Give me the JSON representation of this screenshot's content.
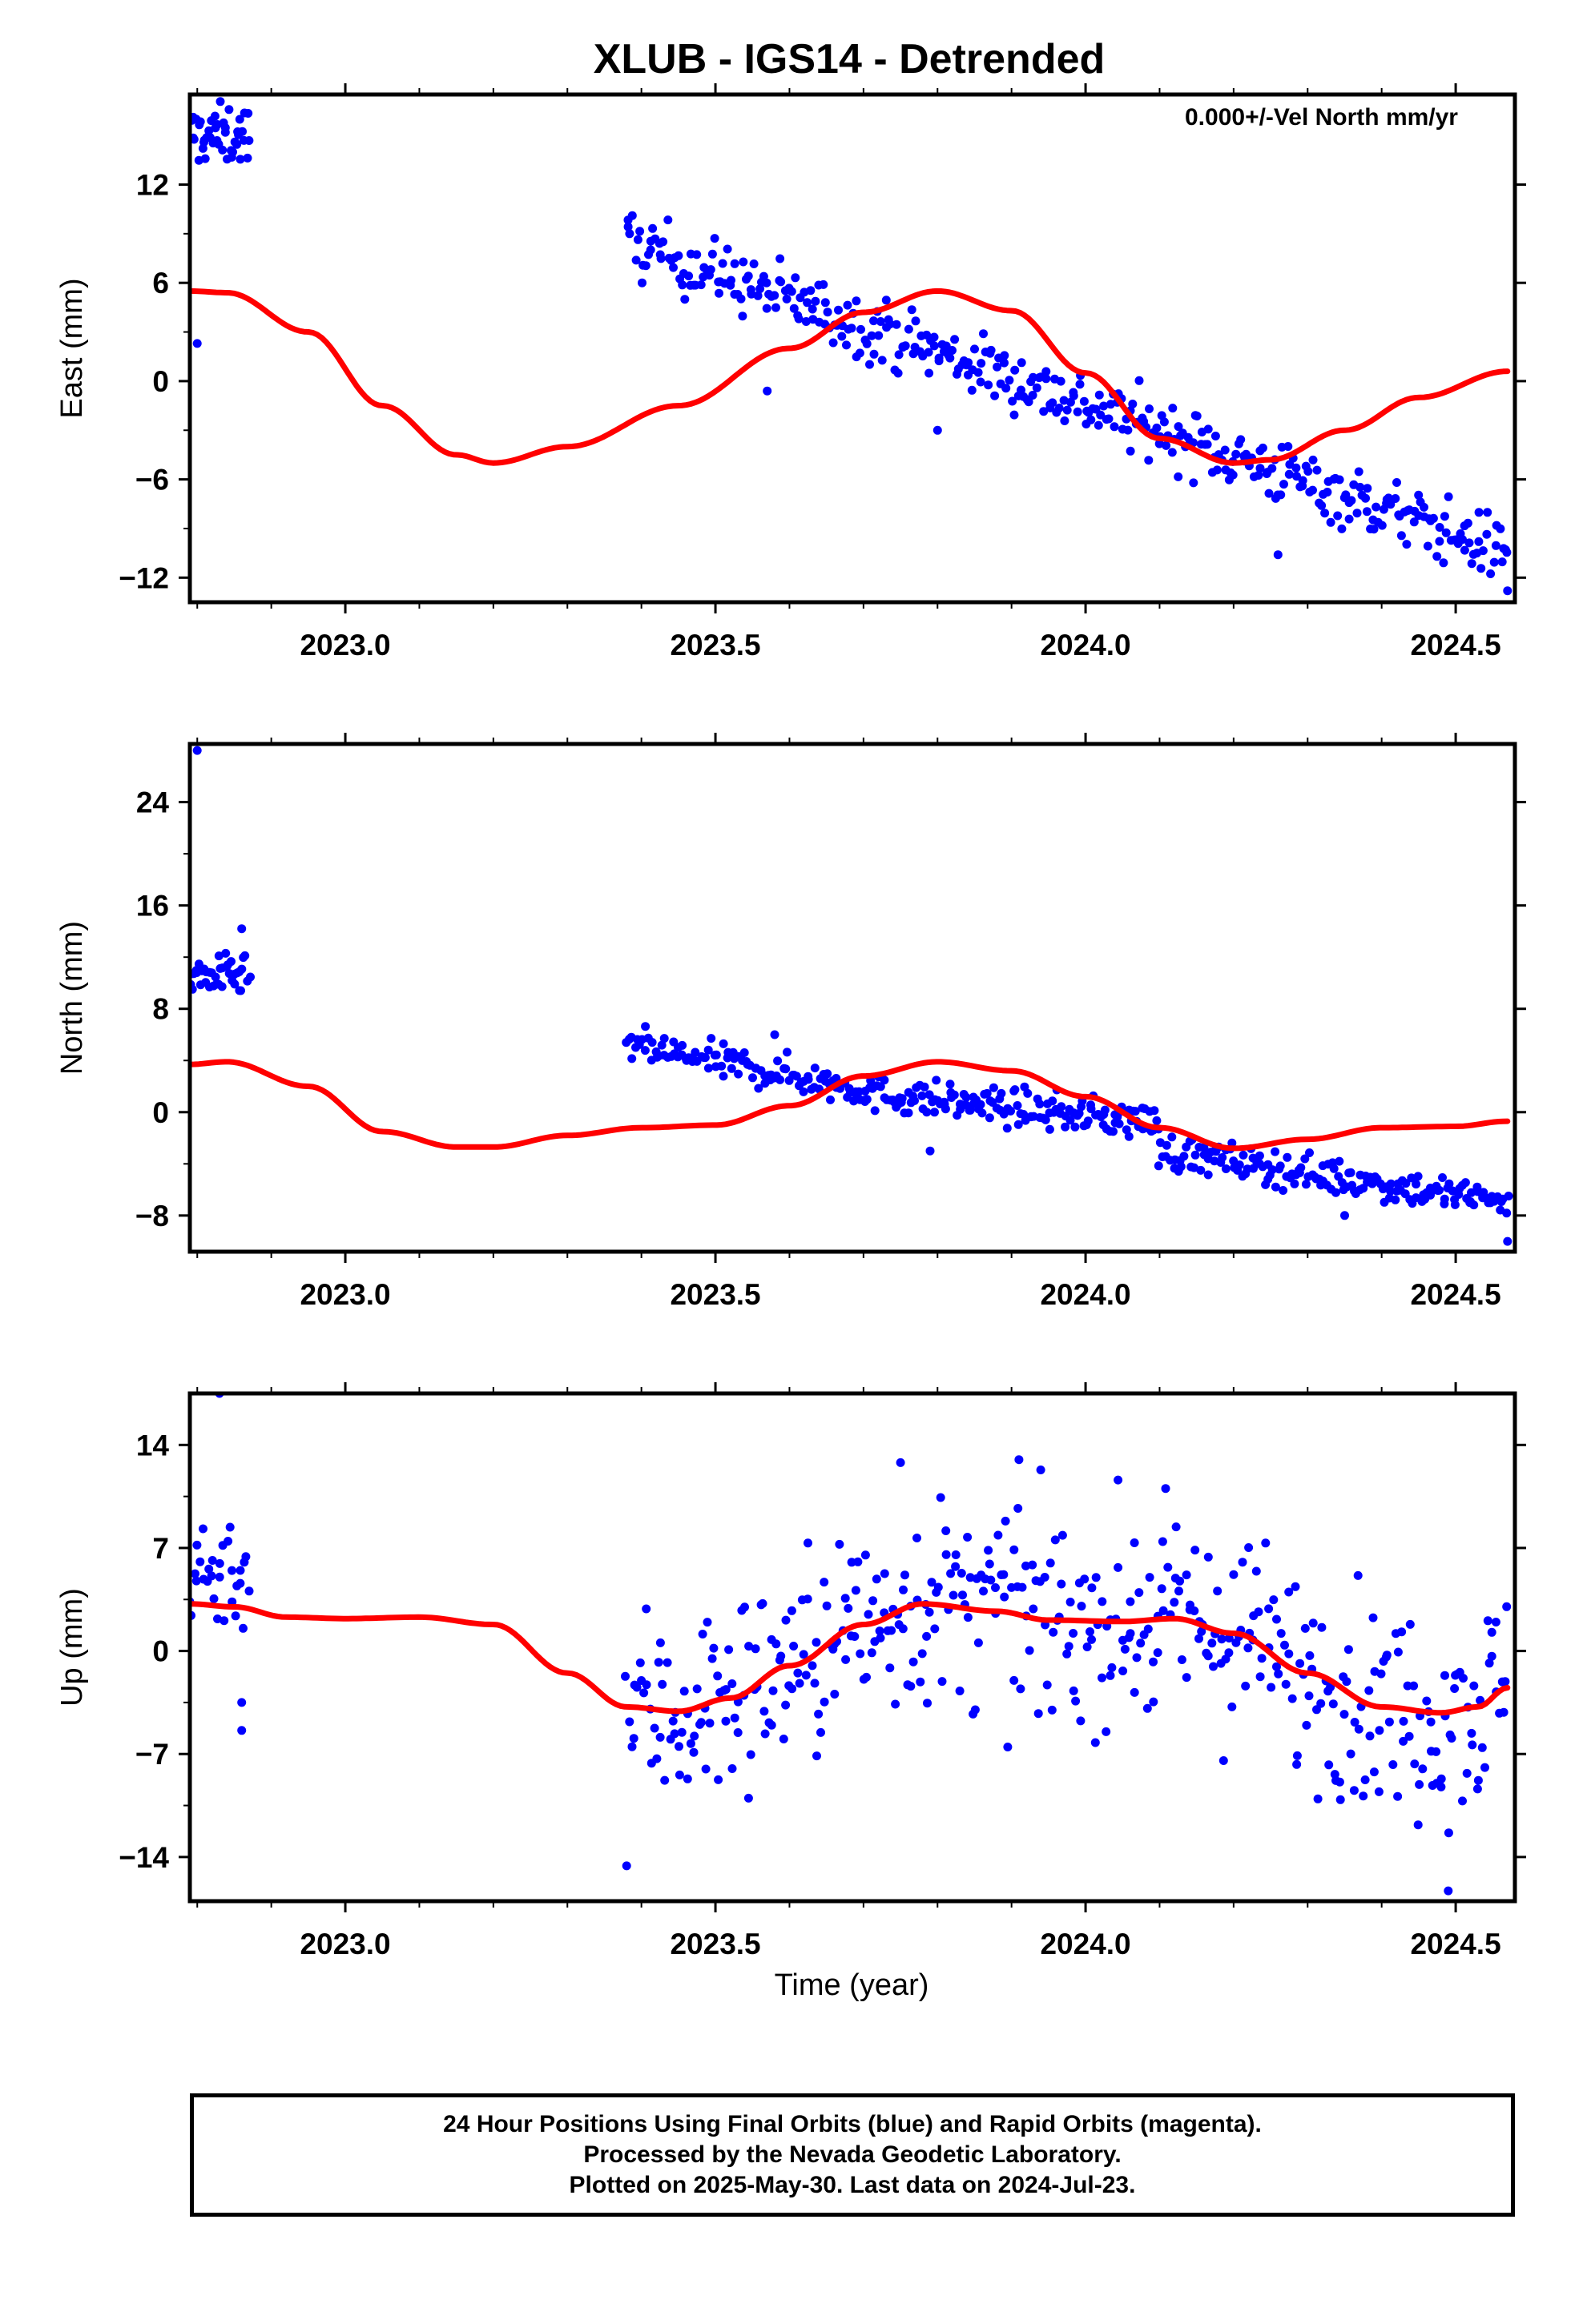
{
  "title": "XLUB - IGS14 - Detrended",
  "annotation": "0.000+/-Vel North mm/yr",
  "x_axis_label": "Time (year)",
  "footer": {
    "line1": "24 Hour Positions Using Final Orbits (blue) and Rapid Orbits (magenta).",
    "line2": "Processed by the Nevada Geodetic Laboratory.",
    "line3": "Plotted on 2025-May-30. Last data on 2024-Jul-23."
  },
  "colors": {
    "points": "#0000ff",
    "model": "#ff0000",
    "frame": "#000000",
    "background": "#ffffff"
  },
  "chart_data": [
    {
      "type": "scatter",
      "ylabel": "East (mm)",
      "xlim": [
        2022.79,
        2024.58
      ],
      "ylim": [
        -13.5,
        17.5
      ],
      "xticks": [
        2023.0,
        2023.5,
        2024.0,
        2024.5
      ],
      "xtick_labels": [
        "2023.0",
        "2023.5",
        "2024.0",
        "2024.5"
      ],
      "yticks": [
        -12,
        -6,
        0,
        6,
        12
      ],
      "ytick_labels": [
        "−12",
        "−6",
        "0",
        "6",
        "12"
      ],
      "series": [
        {
          "kind": "points",
          "segments": [
            {
              "x0": 2022.79,
              "x1": 2022.87,
              "n": 45,
              "y0": 15.0,
              "y1": 15.0,
              "spread": 1.3
            },
            {
              "x0": 2023.38,
              "x1": 2024.57,
              "n": 420,
              "y0": 8.5,
              "y1": -10.5,
              "spread": 1.4
            }
          ],
          "outliers": [
            [
              2022.8,
              2.3
            ],
            [
              2023.57,
              -0.6
            ],
            [
              2023.8,
              -3.0
            ],
            [
              2024.26,
              -10.6
            ],
            [
              2024.57,
              -12.8
            ]
          ]
        },
        {
          "kind": "line",
          "x": [
            2022.79,
            2022.84,
            2022.95,
            2023.05,
            2023.15,
            2023.2,
            2023.3,
            2023.45,
            2023.6,
            2023.7,
            2023.8,
            2023.9,
            2024.0,
            2024.1,
            2024.2,
            2024.25,
            2024.35,
            2024.45,
            2024.57
          ],
          "y": [
            5.5,
            5.4,
            3.0,
            -1.5,
            -4.5,
            -5.0,
            -4.0,
            -1.5,
            2.0,
            4.2,
            5.5,
            4.3,
            0.5,
            -3.5,
            -5.0,
            -4.8,
            -3.0,
            -1.0,
            0.6
          ]
        }
      ]
    },
    {
      "type": "scatter",
      "ylabel": "North (mm)",
      "xlim": [
        2022.79,
        2024.58
      ],
      "ylim": [
        -10.8,
        28.5
      ],
      "xticks": [
        2023.0,
        2023.5,
        2024.0,
        2024.5
      ],
      "xtick_labels": [
        "2023.0",
        "2023.5",
        "2024.0",
        "2024.5"
      ],
      "yticks": [
        -8,
        0,
        8,
        16,
        24
      ],
      "ytick_labels": [
        "−8",
        "0",
        "8",
        "16",
        "24"
      ],
      "series": [
        {
          "kind": "points",
          "segments": [
            {
              "x0": 2022.79,
              "x1": 2022.87,
              "n": 40,
              "y0": 10.5,
              "y1": 10.5,
              "spread": 1.1
            },
            {
              "x0": 2023.38,
              "x1": 2023.7,
              "n": 110,
              "y0": 5.2,
              "y1": 1.8,
              "spread": 1.0
            },
            {
              "x0": 2023.7,
              "x1": 2024.1,
              "n": 150,
              "y0": 1.5,
              "y1": -0.8,
              "spread": 1.0
            },
            {
              "x0": 2024.1,
              "x1": 2024.57,
              "n": 170,
              "y0": -3.0,
              "y1": -7.0,
              "spread": 1.0
            }
          ],
          "outliers": [
            [
              2022.8,
              28.0
            ],
            [
              2022.86,
              14.2
            ],
            [
              2023.58,
              6.0
            ],
            [
              2023.79,
              -3.0
            ],
            [
              2024.57,
              -10.0
            ],
            [
              2024.35,
              -8.0
            ]
          ]
        },
        {
          "kind": "line",
          "x": [
            2022.79,
            2022.84,
            2022.95,
            2023.05,
            2023.15,
            2023.2,
            2023.3,
            2023.4,
            2023.5,
            2023.6,
            2023.7,
            2023.8,
            2023.9,
            2024.0,
            2024.1,
            2024.2,
            2024.3,
            2024.4,
            2024.5,
            2024.57
          ],
          "y": [
            3.7,
            3.9,
            2.0,
            -1.5,
            -2.7,
            -2.7,
            -1.8,
            -1.2,
            -1.0,
            0.5,
            2.8,
            3.9,
            3.2,
            1.2,
            -1.2,
            -2.8,
            -2.1,
            -1.2,
            -1.1,
            -0.7
          ]
        }
      ]
    },
    {
      "type": "scatter",
      "ylabel": "Up (mm)",
      "xlabel": "Time (year)",
      "xlim": [
        2022.79,
        2024.58
      ],
      "ylim": [
        -17.0,
        17.5
      ],
      "xticks": [
        2023.0,
        2023.5,
        2024.0,
        2024.5
      ],
      "xtick_labels": [
        "2023.0",
        "2023.5",
        "2024.0",
        "2024.5"
      ],
      "yticks": [
        -14,
        -7,
        0,
        7,
        14
      ],
      "ytick_labels": [
        "−14",
        "−7",
        "0",
        "7",
        "14"
      ],
      "series": [
        {
          "kind": "points",
          "segments": [
            {
              "x0": 2022.79,
              "x1": 2022.87,
              "n": 30,
              "y0": 5.5,
              "y1": 5.5,
              "spread": 2.8
            },
            {
              "x0": 2023.38,
              "x1": 2024.57,
              "n": 430,
              "y0": 0.0,
              "y1": 0.0,
              "spread": 5.0,
              "follow_model": true
            }
          ],
          "outliers": [
            [
              2022.83,
              17.5
            ],
            [
              2023.38,
              -14.6
            ],
            [
              2024.49,
              -16.3
            ],
            [
              2022.86,
              -5.4
            ],
            [
              2022.86,
              -3.5
            ],
            [
              2023.91,
              13.0
            ],
            [
              2023.75,
              12.8
            ]
          ]
        },
        {
          "kind": "line",
          "x": [
            2022.79,
            2022.85,
            2022.92,
            2023.0,
            2023.1,
            2023.2,
            2023.3,
            2023.38,
            2023.45,
            2023.52,
            2023.6,
            2023.7,
            2023.78,
            2023.88,
            2023.95,
            2024.05,
            2024.12,
            2024.2,
            2024.3,
            2024.4,
            2024.48,
            2024.53,
            2024.57
          ],
          "y": [
            3.2,
            3.0,
            2.3,
            2.2,
            2.3,
            1.8,
            -1.5,
            -3.8,
            -4.1,
            -3.2,
            -1.0,
            1.8,
            3.2,
            2.7,
            2.1,
            2.0,
            2.2,
            1.2,
            -1.5,
            -3.8,
            -4.2,
            -3.8,
            -2.5
          ]
        }
      ]
    }
  ]
}
